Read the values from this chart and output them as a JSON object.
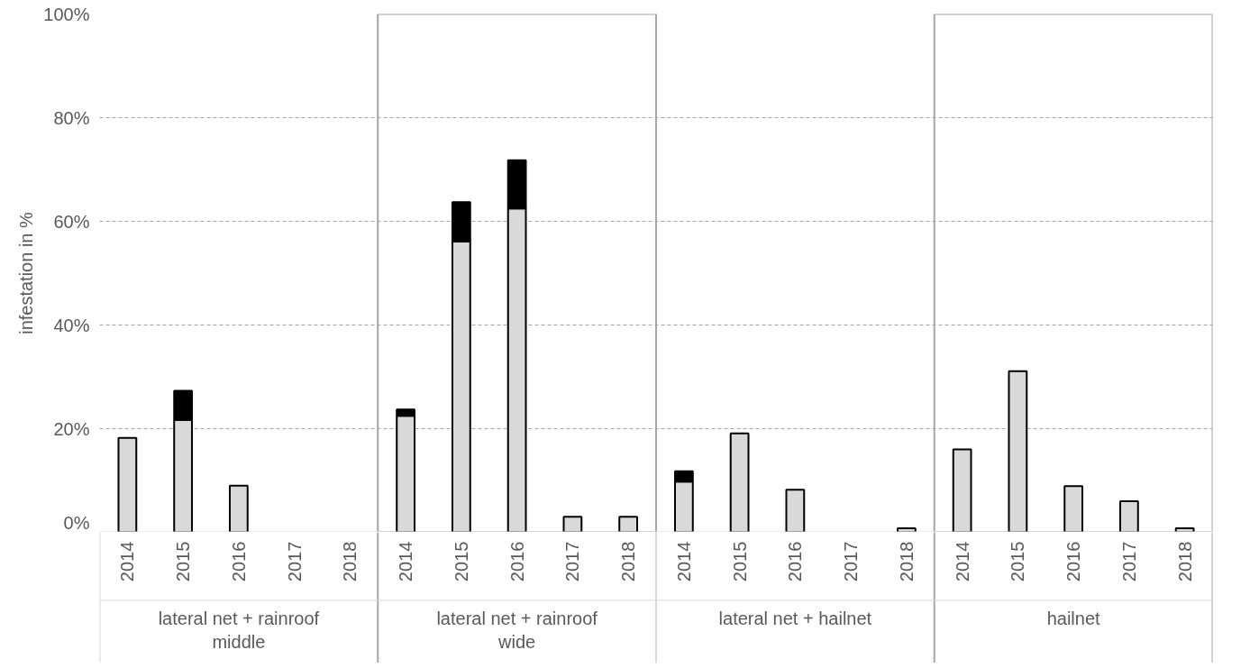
{
  "chart_data": {
    "type": "bar",
    "stacked": true,
    "ylabel": "infestation in %",
    "categories": [
      "2014",
      "2015",
      "2016",
      "2017",
      "2018",
      "2014",
      "2015",
      "2016",
      "2017",
      "2018",
      "2014",
      "2015",
      "2016",
      "2017",
      "2018",
      "2014",
      "2015",
      "2016",
      "2017",
      "2018"
    ],
    "annotations": [
      "lateral net + rainroof middle",
      "lateral net + rainroof wide",
      "lateral net + hailnet",
      "hailnet"
    ],
    "series": [
      {
        "color": "#d9d9d9",
        "values": [
          18.2,
          21.7,
          9.0,
          null,
          null,
          22.5,
          56.1,
          62.5,
          3.0,
          3.0,
          9.8,
          19.1,
          8.2,
          null,
          0.8,
          16.0,
          31.1,
          8.9,
          6.0,
          0.8
        ]
      },
      {
        "color": "#000000",
        "values": [
          null,
          5.6,
          null,
          null,
          null,
          1.2,
          7.6,
          9.3,
          null,
          null,
          2.0,
          null,
          null,
          null,
          null,
          null,
          null,
          null,
          null,
          null
        ]
      }
    ],
    "ylim": [
      0,
      100
    ],
    "yticks": [
      {
        "value": 0,
        "label": "0%"
      },
      {
        "value": 20,
        "label": "20%"
      },
      {
        "value": 40,
        "label": "40%"
      },
      {
        "value": 60,
        "label": "60%"
      },
      {
        "value": 80,
        "label": "80%"
      },
      {
        "value": 100,
        "label": "100%"
      }
    ],
    "grid": "y"
  }
}
